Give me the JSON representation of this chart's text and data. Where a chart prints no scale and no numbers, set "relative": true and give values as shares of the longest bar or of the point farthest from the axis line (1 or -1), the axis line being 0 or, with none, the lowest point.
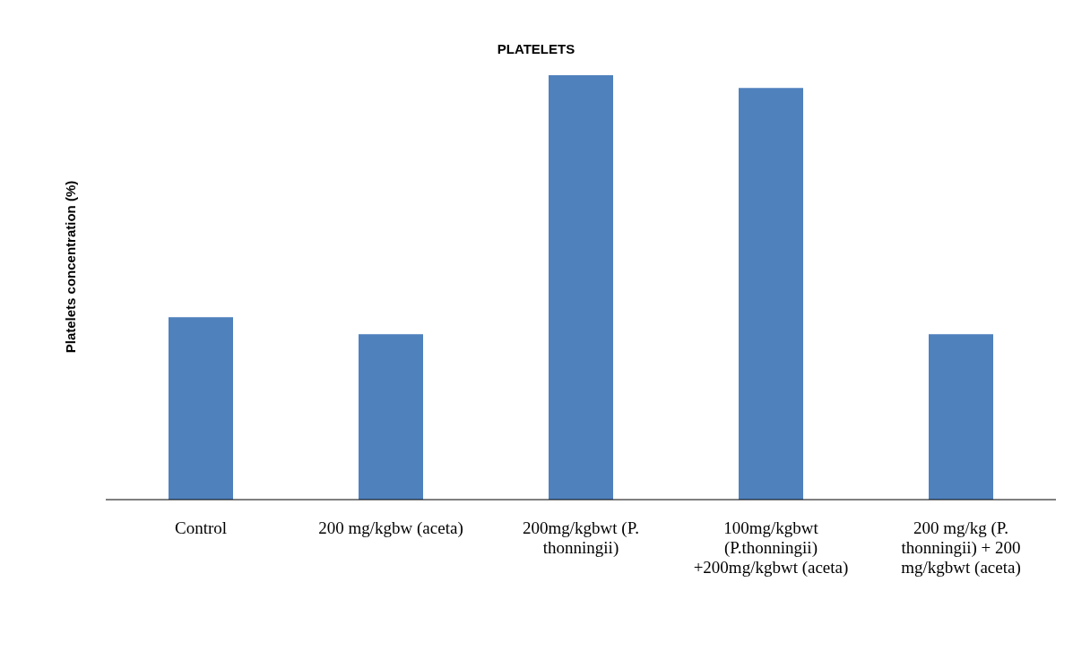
{
  "chart_data": {
    "type": "bar",
    "title": "PLATELETS",
    "ylabel": "Platelets concentration  (%)",
    "relative": true,
    "color": "#4f81bd",
    "categories": [
      "Control",
      "200 mg/kgbw (aceta)",
      "200mg/kgbwt (P. thonningii)",
      "100mg/kgbwt (P.thonningii) +200mg/kgbwt (aceta)",
      "200 mg/kg (P. thonningii) + 200 mg/kgbwt (aceta)"
    ],
    "values": [
      0.43,
      0.39,
      1,
      0.97,
      0.39
    ],
    "grid": false,
    "legend": false
  }
}
